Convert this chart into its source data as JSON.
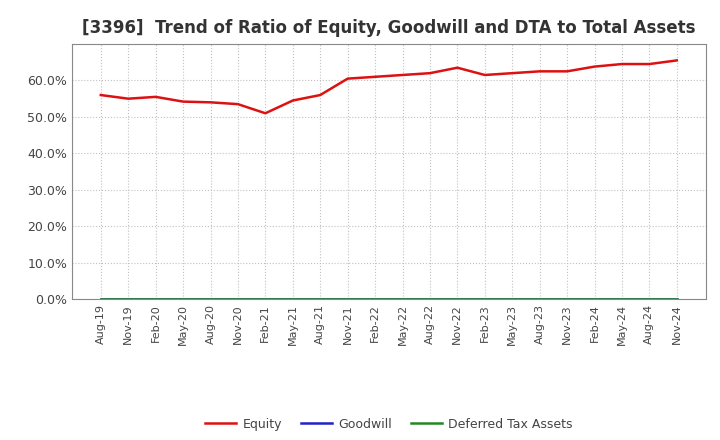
{
  "title": "[3396]  Trend of Ratio of Equity, Goodwill and DTA to Total Assets",
  "x_labels": [
    "Aug-19",
    "Nov-19",
    "Feb-20",
    "May-20",
    "Aug-20",
    "Nov-20",
    "Feb-21",
    "May-21",
    "Aug-21",
    "Nov-21",
    "Feb-22",
    "May-22",
    "Aug-22",
    "Nov-22",
    "Feb-23",
    "May-23",
    "Aug-23",
    "Nov-23",
    "Feb-24",
    "May-24",
    "Aug-24",
    "Nov-24"
  ],
  "equity": [
    56.0,
    55.0,
    55.5,
    54.2,
    54.0,
    53.5,
    51.0,
    54.5,
    56.0,
    60.5,
    61.0,
    61.5,
    62.0,
    63.5,
    61.5,
    62.0,
    62.5,
    62.5,
    63.8,
    64.5,
    64.5,
    65.5
  ],
  "goodwill": [
    0.0,
    0.0,
    0.0,
    0.0,
    0.0,
    0.0,
    0.0,
    0.0,
    0.0,
    0.0,
    0.0,
    0.0,
    0.0,
    0.0,
    0.0,
    0.0,
    0.0,
    0.0,
    0.0,
    0.0,
    0.0,
    0.0
  ],
  "dta": [
    0.0,
    0.0,
    0.0,
    0.0,
    0.0,
    0.0,
    0.0,
    0.0,
    0.0,
    0.0,
    0.0,
    0.0,
    0.0,
    0.0,
    0.0,
    0.0,
    0.0,
    0.0,
    0.0,
    0.0,
    0.0,
    0.0
  ],
  "equity_color": "#dd1111",
  "goodwill_color": "#2222cc",
  "dta_color": "#228822",
  "ylim": [
    0,
    70
  ],
  "yticks": [
    0,
    10,
    20,
    30,
    40,
    50,
    60
  ],
  "ytick_labels": [
    "0.0%",
    "10.0%",
    "20.0%",
    "30.0%",
    "40.0%",
    "50.0%",
    "60.0%"
  ],
  "background_color": "#ffffff",
  "plot_bg_color": "#ffffff",
  "grid_color": "#bbbbbb",
  "title_fontsize": 12,
  "title_color": "#333333",
  "legend_labels": [
    "Equity",
    "Goodwill",
    "Deferred Tax Assets"
  ],
  "linewidth": 1.8,
  "tick_color": "#444444",
  "spine_color": "#888888"
}
